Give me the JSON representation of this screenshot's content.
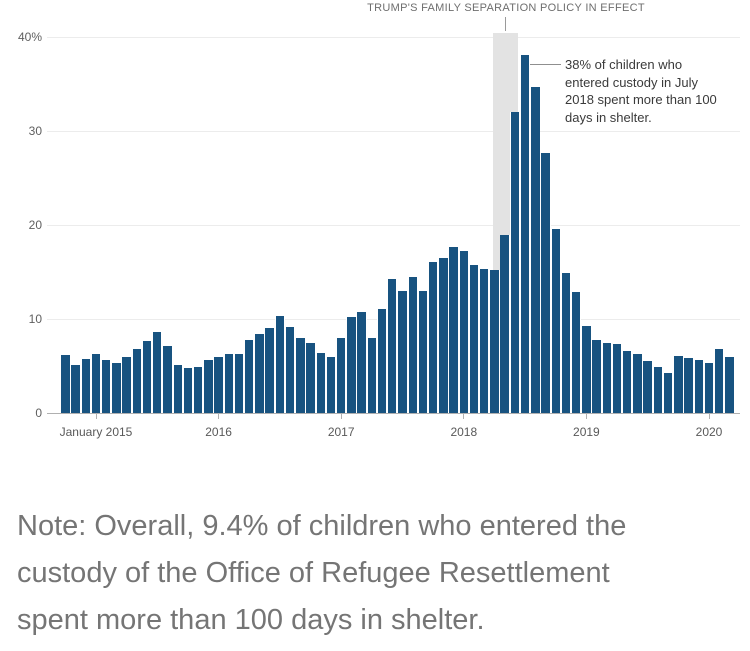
{
  "chart_data": {
    "type": "bar",
    "title": "",
    "xlabel": "",
    "ylabel": "",
    "ylim": [
      0,
      40
    ],
    "grid": true,
    "bar_color": "#185380",
    "x": [
      "Oct 2014",
      "Nov 2014",
      "Dec 2014",
      "Jan 2015",
      "Feb 2015",
      "Mar 2015",
      "Apr 2015",
      "May 2015",
      "Jun 2015",
      "Jul 2015",
      "Aug 2015",
      "Sep 2015",
      "Oct 2015",
      "Nov 2015",
      "Dec 2015",
      "Jan 2016",
      "Feb 2016",
      "Mar 2016",
      "Apr 2016",
      "May 2016",
      "Jun 2016",
      "Jul 2016",
      "Aug 2016",
      "Sep 2016",
      "Oct 2016",
      "Nov 2016",
      "Dec 2016",
      "Jan 2017",
      "Feb 2017",
      "Mar 2017",
      "Apr 2017",
      "May 2017",
      "Jun 2017",
      "Jul 2017",
      "Aug 2017",
      "Sep 2017",
      "Oct 2017",
      "Nov 2017",
      "Dec 2017",
      "Jan 2018",
      "Feb 2018",
      "Mar 2018",
      "Apr 2018",
      "May 2018",
      "Jun 2018",
      "Jul 2018",
      "Aug 2018",
      "Sep 2018",
      "Oct 2018",
      "Nov 2018",
      "Dec 2018",
      "Jan 2019",
      "Feb 2019",
      "Mar 2019",
      "Apr 2019",
      "May 2019",
      "Jun 2019",
      "Jul 2019",
      "Aug 2019",
      "Sep 2019",
      "Oct 2019",
      "Nov 2019",
      "Dec 2019",
      "Jan 2020",
      "Feb 2020",
      "Mar 2020"
    ],
    "values": [
      6.2,
      5.1,
      5.7,
      6.3,
      5.6,
      5.3,
      5.9,
      6.8,
      7.7,
      8.6,
      7.1,
      5.1,
      4.8,
      4.9,
      5.6,
      5.9,
      6.3,
      6.3,
      7.8,
      8.4,
      9.0,
      10.3,
      9.1,
      8.0,
      7.4,
      6.4,
      5.9,
      8.0,
      10.2,
      10.7,
      8.0,
      11.1,
      14.2,
      13.0,
      14.5,
      13.0,
      16.0,
      16.5,
      17.6,
      17.2,
      15.7,
      15.3,
      15.2,
      18.9,
      32.0,
      38.0,
      34.6,
      27.6,
      19.5,
      14.9,
      12.9,
      9.2,
      7.8,
      7.4,
      7.3,
      6.6,
      6.3,
      5.5,
      4.9,
      4.3,
      6.1,
      5.8,
      5.6,
      5.3,
      6.8,
      5.9
    ],
    "y_ticks": [
      {
        "value": 0,
        "label": "0"
      },
      {
        "value": 10,
        "label": "10"
      },
      {
        "value": 20,
        "label": "20"
      },
      {
        "value": 30,
        "label": "30"
      },
      {
        "value": 40,
        "label": "40%"
      }
    ],
    "x_ticks": [
      {
        "label": "January 2015",
        "at": "Jan 2015"
      },
      {
        "label": "2016",
        "at": "Jan 2016"
      },
      {
        "label": "2017",
        "at": "Jan 2017"
      },
      {
        "label": "2018",
        "at": "Jan 2018"
      },
      {
        "label": "2019",
        "at": "Jan 2019"
      },
      {
        "label": "2020",
        "at": "Jan 2020"
      }
    ],
    "highlight_band": {
      "label": "TRUMP'S FAMILY SEPARATION POLICY IN EFFECT",
      "start_month": "Apr 2018",
      "end_month": "Jun 2018",
      "color": "#e3e3e3"
    },
    "annotation": {
      "attached_month": "Jul 2018",
      "lines": [
        "38% of children who",
        "entered custody in July",
        "2018 spent more than 100",
        "days in shelter."
      ],
      "text": "38% of children who entered custody in July 2018 spent more than 100 days in shelter."
    },
    "legend": []
  },
  "note": {
    "lines": [
      "Note: Overall, 9.4% of children who entered the",
      "custody of the Office of Refugee Resettlement",
      "spent more than 100 days in shelter."
    ],
    "text": "Note: Overall, 9.4% of children who entered the custody of the Office of Refugee Resettlement spent more than 100 days in shelter."
  }
}
